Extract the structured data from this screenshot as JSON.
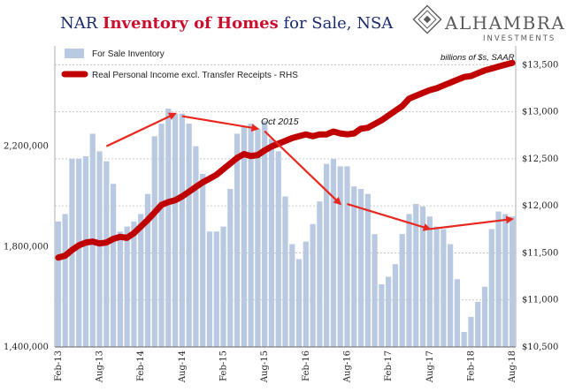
{
  "title": {
    "part1": "NAR ",
    "part2": "Inventory of Homes",
    "part3": " for Sale, NSA"
  },
  "logo": {
    "name": "ALHAMBRA",
    "subtitle": "INVESTMENTS"
  },
  "colors": {
    "bar": "#b8c9e1",
    "line": "#c00000",
    "arrow": "#e8281e",
    "title_navy": "#1a2a6c",
    "title_red": "#c8102e"
  },
  "chart_data": {
    "type": "bar",
    "x": [
      "Feb-13",
      "Mar-13",
      "Apr-13",
      "May-13",
      "Jun-13",
      "Jul-13",
      "Aug-13",
      "Sep-13",
      "Oct-13",
      "Nov-13",
      "Dec-13",
      "Jan-14",
      "Feb-14",
      "Mar-14",
      "Apr-14",
      "May-14",
      "Jun-14",
      "Jul-14",
      "Aug-14",
      "Sep-14",
      "Oct-14",
      "Nov-14",
      "Dec-14",
      "Jan-15",
      "Feb-15",
      "Mar-15",
      "Apr-15",
      "May-15",
      "Jun-15",
      "Jul-15",
      "Aug-15",
      "Sep-15",
      "Oct-15",
      "Nov-15",
      "Dec-15",
      "Jan-16",
      "Feb-16",
      "Mar-16",
      "Apr-16",
      "May-16",
      "Jun-16",
      "Jul-16",
      "Aug-16",
      "Sep-16",
      "Oct-16",
      "Nov-16",
      "Dec-16",
      "Jan-17",
      "Feb-17",
      "Mar-17",
      "Apr-17",
      "May-17",
      "Jun-17",
      "Jul-17",
      "Aug-17",
      "Sep-17",
      "Oct-17",
      "Nov-17",
      "Dec-17",
      "Jan-18",
      "Feb-18",
      "Mar-18",
      "Apr-18",
      "May-18",
      "Jun-18",
      "Jul-18",
      "Aug-18"
    ],
    "x_tick_labels": [
      "Feb-13",
      "Aug-13",
      "Feb-14",
      "Aug-14",
      "Feb-15",
      "Aug-15",
      "Feb-16",
      "Aug-16",
      "Feb-17",
      "Aug-17",
      "Feb-18",
      "Aug-18"
    ],
    "series": [
      {
        "name": "For Sale Inventory",
        "type": "bar",
        "axis": "left",
        "values": [
          1900000,
          1930000,
          2150000,
          2150000,
          2160000,
          2250000,
          2180000,
          2140000,
          2050000,
          1860000,
          1880000,
          1900000,
          1930000,
          2010000,
          2240000,
          2290000,
          2350000,
          2330000,
          2330000,
          2290000,
          2200000,
          2090000,
          1860000,
          1860000,
          1880000,
          2030000,
          2250000,
          2280000,
          2290000,
          2270000,
          2300000,
          2230000,
          2180000,
          2000000,
          1810000,
          1750000,
          1820000,
          1890000,
          1980000,
          2130000,
          2150000,
          2120000,
          2120000,
          2040000,
          2030000,
          2010000,
          1850000,
          1650000,
          1680000,
          1730000,
          1850000,
          1930000,
          1970000,
          1960000,
          1920000,
          1880000,
          1870000,
          1810000,
          1670000,
          1460000,
          1520000,
          1580000,
          1640000,
          1870000,
          1940000,
          1930000,
          1920000
        ]
      },
      {
        "name": "Real Personal Income excl. Transfer Receipts - RHS",
        "type": "line",
        "axis": "right",
        "values": [
          11450,
          11470,
          11530,
          11580,
          11610,
          11620,
          11600,
          11610,
          11650,
          11670,
          11660,
          11710,
          11780,
          11850,
          11930,
          12010,
          12040,
          12060,
          12100,
          12150,
          12200,
          12250,
          12290,
          12330,
          12390,
          12450,
          12510,
          12550,
          12530,
          12540,
          12590,
          12630,
          12660,
          12690,
          12720,
          12740,
          12760,
          12740,
          12760,
          12760,
          12790,
          12770,
          12760,
          12770,
          12820,
          12830,
          12870,
          12910,
          12960,
          13010,
          13060,
          13140,
          13170,
          13200,
          13230,
          13250,
          13280,
          13310,
          13340,
          13370,
          13380,
          13410,
          13440,
          13460,
          13480,
          13500,
          13520
        ]
      }
    ],
    "y_left": {
      "min": 1400000,
      "max": 2600000,
      "ticks": [
        1400000,
        1800000,
        2200000
      ],
      "tick_labels": [
        "1,400,000",
        "1,800,000",
        "2,200,000"
      ]
    },
    "y_right": {
      "min": 10500,
      "max": 13700,
      "ticks": [
        10500,
        11000,
        11500,
        12000,
        12500,
        13000,
        13500
      ],
      "tick_labels": [
        "$10,500",
        "$11,000",
        "$11,500",
        "$12,000",
        "$12,500",
        "$13,000",
        "$13,500"
      ],
      "label": "billions of $s, SAAR"
    },
    "grid": "horizontal dashed",
    "legend": "top-left",
    "annotations": [
      {
        "text": "Oct 2015",
        "at": "Oct-15"
      }
    ],
    "trend_arrows": [
      {
        "from": [
          "Sep-13",
          2200000
        ],
        "to": [
          "Jul-14",
          2330000
        ]
      },
      {
        "from": [
          "Aug-14",
          2320000
        ],
        "to": [
          "Jul-15",
          2270000
        ]
      },
      {
        "from": [
          "Aug-15",
          2260000
        ],
        "to": [
          "Jul-16",
          1970000
        ]
      },
      {
        "from": [
          "Aug-16",
          1970000
        ],
        "to": [
          "Aug-17",
          1870000
        ]
      },
      {
        "from": [
          "Aug-17",
          1870000
        ],
        "to": [
          "Aug-18",
          1910000
        ]
      }
    ]
  }
}
